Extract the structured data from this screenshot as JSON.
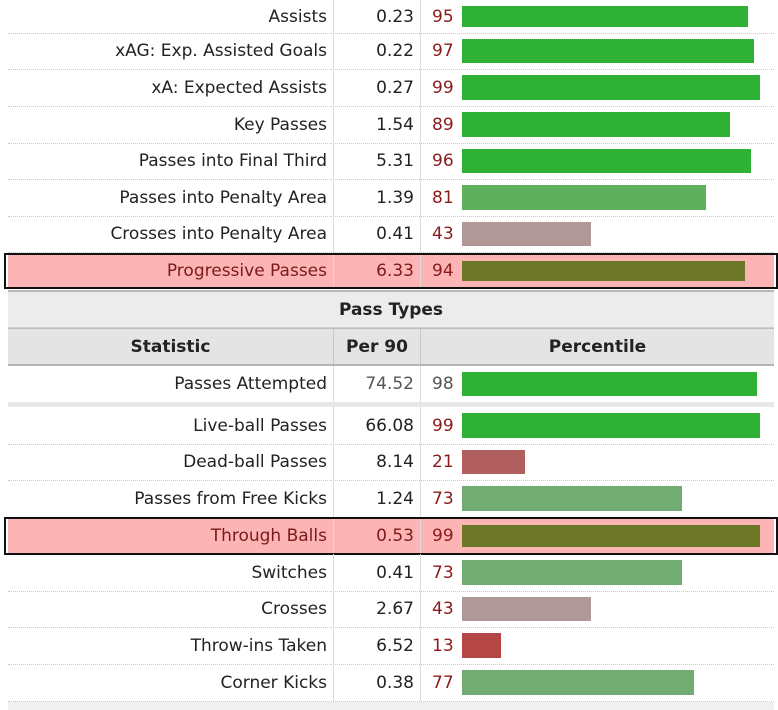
{
  "passing_rows": [
    {
      "label": "Assists",
      "per90": "0.23",
      "percentile": "95",
      "highlighted": false
    },
    {
      "label": "xAG: Exp. Assisted Goals",
      "per90": "0.22",
      "percentile": "97",
      "highlighted": false
    },
    {
      "label": "xA: Expected Assists",
      "per90": "0.27",
      "percentile": "99",
      "highlighted": false
    },
    {
      "label": "Key Passes",
      "per90": "1.54",
      "percentile": "89",
      "highlighted": false
    },
    {
      "label": "Passes into Final Third",
      "per90": "5.31",
      "percentile": "96",
      "highlighted": false
    },
    {
      "label": "Passes into Penalty Area",
      "per90": "1.39",
      "percentile": "81",
      "highlighted": false
    },
    {
      "label": "Crosses into Penalty Area",
      "per90": "0.41",
      "percentile": "43",
      "highlighted": false
    },
    {
      "label": "Progressive Passes",
      "per90": "6.33",
      "percentile": "94",
      "highlighted": true
    }
  ],
  "pass_types": {
    "section_title": "Pass Types",
    "columns": {
      "statistic": "Statistic",
      "per90": "Per 90",
      "percentile": "Percentile"
    },
    "first_row": {
      "label": "Passes Attempted",
      "per90": "74.52",
      "percentile": "98",
      "highlighted": false
    },
    "rows": [
      {
        "label": "Live-ball Passes",
        "per90": "66.08",
        "percentile": "99",
        "highlighted": false
      },
      {
        "label": "Dead-ball Passes",
        "per90": "8.14",
        "percentile": "21",
        "highlighted": false
      },
      {
        "label": "Passes from Free Kicks",
        "per90": "1.24",
        "percentile": "73",
        "highlighted": false
      },
      {
        "label": "Through Balls",
        "per90": "0.53",
        "percentile": "99",
        "highlighted": true
      },
      {
        "label": "Switches",
        "per90": "0.41",
        "percentile": "73",
        "highlighted": false
      },
      {
        "label": "Crosses",
        "per90": "2.67",
        "percentile": "43",
        "highlighted": false
      },
      {
        "label": "Throw-ins Taken",
        "per90": "6.52",
        "percentile": "13",
        "highlighted": false
      },
      {
        "label": "Corner Kicks",
        "per90": "0.38",
        "percentile": "77",
        "highlighted": false
      }
    ]
  },
  "colors": {
    "bar_high": "#2eb135",
    "bar_mid_high": "#5fb05c",
    "bar_mid": "#72ac72",
    "bar_neutral": "#b09898",
    "bar_low": "#b15e5e",
    "bar_very_low": "#b54646",
    "bar_highlight": "#6c7727",
    "highlight_bg": "#fdb4b4",
    "percentile_text": "#8b1a1a",
    "first_pct_text": "#555555"
  }
}
